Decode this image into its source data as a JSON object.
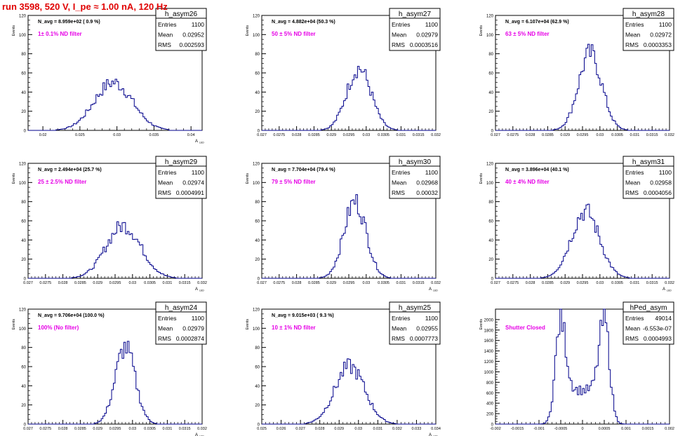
{
  "page_title": "run 3598,   520 V, I_pe ≈ 1.00 nA, 120 Hz",
  "colors": {
    "hist_line": "#00008b",
    "filter_label": "#e600e6",
    "title_red": "#e00000"
  },
  "common": {
    "ylabel": "Events",
    "xlabel_main": "A",
    "xlabel_sub": "LED",
    "stats_labels": [
      "Entries",
      "Mean",
      "RMS"
    ]
  },
  "chart_data": [
    {
      "name": "h_asym26",
      "type": "histogram",
      "nlabel": "N_avg = 8.959e+02 ( 0.9 %)",
      "filter": "1± 0.1% ND filter",
      "stats": {
        "entries": "1100",
        "mean": "0.02952",
        "rms": "0.002593"
      },
      "xlim": [
        0.018,
        0.0415
      ],
      "xticks": [
        "0.02",
        "0.025",
        "0.03",
        "0.035",
        "0.04"
      ],
      "ylim": [
        0,
        120
      ],
      "yticks": [
        "0",
        "20",
        "40",
        "60",
        "80",
        "100",
        "120"
      ],
      "mean_value": 0.02952,
      "rms_value": 0.002593,
      "peak": 50,
      "xlabel_side": "right"
    },
    {
      "name": "h_asym27",
      "type": "histogram",
      "nlabel": "N_avg = 4.882e+04 (50.3 %)",
      "filter": "50 ± 5% ND filter",
      "stats": {
        "entries": "1100",
        "mean": "0.02979",
        "rms": "0.0003516"
      },
      "xlim": [
        0.027,
        0.032
      ],
      "xticks": [
        "0.027",
        "0.0275",
        "0.028",
        "0.0285",
        "0.029",
        "0.0295",
        "0.03",
        "0.0305",
        "0.031",
        "0.0315",
        "0.032"
      ],
      "ylim": [
        0,
        120
      ],
      "yticks": [
        "0",
        "20",
        "40",
        "60",
        "80",
        "100",
        "120"
      ],
      "mean_value": 0.02979,
      "rms_value": 0.0003516,
      "peak": 65,
      "xlabel_side": "none"
    },
    {
      "name": "h_asym28",
      "type": "histogram",
      "nlabel": "N_avg = 6.107e+04 (62.9 %)",
      "filter": "63 ± 5% ND filter",
      "stats": {
        "entries": "1100",
        "mean": "0.02972",
        "rms": "0.0003353"
      },
      "xlim": [
        0.027,
        0.032
      ],
      "xticks": [
        "0.027",
        "0.0275",
        "0.028",
        "0.0285",
        "0.029",
        "0.0295",
        "0.03",
        "0.0305",
        "0.031",
        "0.0315",
        "0.032"
      ],
      "ylim": [
        0,
        120
      ],
      "yticks": [
        "0",
        "20",
        "40",
        "60",
        "80",
        "100",
        "120"
      ],
      "mean_value": 0.02972,
      "rms_value": 0.0003353,
      "peak": 80,
      "xlabel_side": "none"
    },
    {
      "name": "h_asym29",
      "type": "histogram",
      "nlabel": "N_avg = 2.494e+04 (25.7 %)",
      "filter": "25 ± 2.5% ND filter",
      "stats": {
        "entries": "1100",
        "mean": "0.02974",
        "rms": "0.0004991"
      },
      "xlim": [
        0.027,
        0.032
      ],
      "xticks": [
        "0.027",
        "0.0275",
        "0.028",
        "0.0285",
        "0.029",
        "0.0295",
        "0.03",
        "0.0305",
        "0.031",
        "0.0315",
        "0.032"
      ],
      "ylim": [
        0,
        120
      ],
      "yticks": [
        "0",
        "20",
        "40",
        "60",
        "80",
        "100",
        "120"
      ],
      "mean_value": 0.02974,
      "rms_value": 0.0004991,
      "peak": 55,
      "xlabel_side": "right"
    },
    {
      "name": "h_asym30",
      "type": "histogram",
      "nlabel": "N_avg = 7.704e+04 (79.4 %)",
      "filter": "79 ± 5% ND filter",
      "stats": {
        "entries": "1100",
        "mean": "0.02968",
        "rms": "0.00032"
      },
      "xlim": [
        0.027,
        0.032
      ],
      "xticks": [
        "0.027",
        "0.0275",
        "0.028",
        "0.0285",
        "0.029",
        "0.0295",
        "0.03",
        "0.0305",
        "0.031",
        "0.0315",
        "0.032"
      ],
      "ylim": [
        0,
        120
      ],
      "yticks": [
        "0",
        "20",
        "40",
        "60",
        "80",
        "100",
        "120"
      ],
      "mean_value": 0.02968,
      "rms_value": 0.00032,
      "peak": 80,
      "xlabel_side": "right"
    },
    {
      "name": "h_asym31",
      "type": "histogram",
      "nlabel": "N_avg = 3.896e+04 (40.1 %)",
      "filter": "40 ± 4% ND filter",
      "stats": {
        "entries": "1100",
        "mean": "0.02958",
        "rms": "0.0004056"
      },
      "xlim": [
        0.027,
        0.032
      ],
      "xticks": [
        "0.027",
        "0.0275",
        "0.028",
        "0.0285",
        "0.029",
        "0.0295",
        "0.03",
        "0.0305",
        "0.031",
        "0.0315",
        "0.032"
      ],
      "ylim": [
        0,
        120
      ],
      "yticks": [
        "0",
        "20",
        "40",
        "60",
        "80",
        "100",
        "120"
      ],
      "mean_value": 0.02958,
      "rms_value": 0.0004056,
      "peak": 70,
      "xlabel_side": "right"
    },
    {
      "name": "h_asym24",
      "type": "histogram",
      "nlabel": "N_avg = 9.706e+04 (100.0 %)",
      "filter": "100% (No filter)",
      "stats": {
        "entries": "1100",
        "mean": "0.02979",
        "rms": "0.0002874"
      },
      "xlim": [
        0.027,
        0.032
      ],
      "xticks": [
        "0.027",
        "0.0275",
        "0.028",
        "0.0285",
        "0.029",
        "0.0295",
        "0.03",
        "0.0305",
        "0.031",
        "0.0315",
        "0.032"
      ],
      "ylim": [
        0,
        120
      ],
      "yticks": [
        "0",
        "20",
        "40",
        "60",
        "80",
        "100",
        "120"
      ],
      "mean_value": 0.02979,
      "rms_value": 0.0002874,
      "peak": 80,
      "xlabel_side": "right"
    },
    {
      "name": "h_asym25",
      "type": "histogram",
      "nlabel": "N_avg = 9.015e+03 ( 9.3 %)",
      "filter": "10 ± 1% ND filter",
      "stats": {
        "entries": "1100",
        "mean": "0.02955",
        "rms": "0.0007773"
      },
      "xlim": [
        0.025,
        0.034
      ],
      "xticks": [
        "0.025",
        "0.026",
        "0.027",
        "0.028",
        "0.029",
        "0.03",
        "0.031",
        "0.032",
        "0.033",
        "0.034"
      ],
      "ylim": [
        0,
        120
      ],
      "yticks": [
        "0",
        "20",
        "40",
        "60",
        "80",
        "100",
        "120"
      ],
      "mean_value": 0.02955,
      "rms_value": 0.0007773,
      "peak": 60,
      "xlabel_side": "right"
    },
    {
      "name": "hPed_asym",
      "type": "histogram",
      "nlabel": "",
      "filter": "Shutter Closed",
      "stats": {
        "entries": "49014",
        "mean": "-6.553e-07",
        "rms": "0.0004993"
      },
      "xlim": [
        -0.002,
        0.002
      ],
      "xticks": [
        "-0.002",
        "-0.0015",
        "-0.001",
        "-0.0005",
        "0",
        "0.0005",
        "0.001",
        "0.0015",
        "0.002"
      ],
      "ylim": [
        0,
        2200
      ],
      "yticks": [
        "0",
        "200",
        "400",
        "600",
        "800",
        "1000",
        "1200",
        "1400",
        "1600",
        "1800",
        "2000"
      ],
      "mean_value": 0,
      "rms_value": 0.0004993,
      "peak": 2000,
      "bimodal": true,
      "xlabel_side": "none"
    }
  ]
}
